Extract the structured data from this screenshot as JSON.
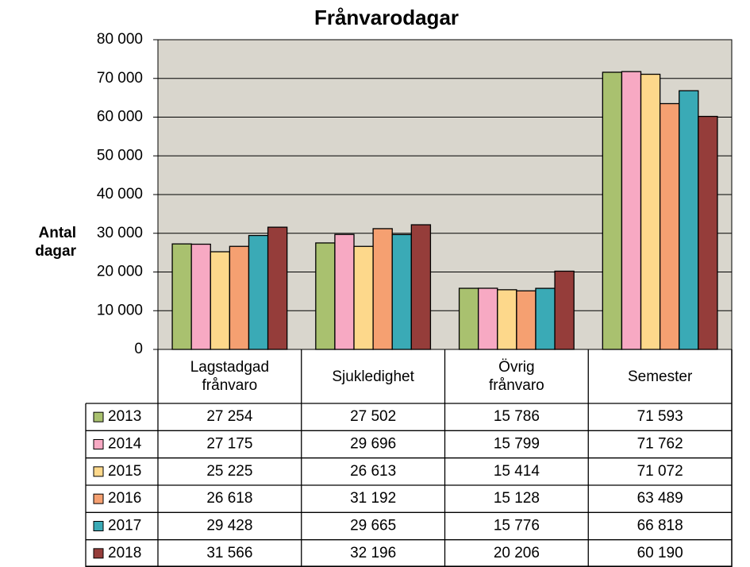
{
  "chart_data": {
    "type": "bar",
    "title": "Frånvarodagar",
    "y_label": "Antal dagar",
    "categories": [
      "Lagstadgad frånvaro",
      "Sjukledighet",
      "Övrig frånvaro",
      "Semester"
    ],
    "series": [
      {
        "name": "2013",
        "color": "#a9c16f",
        "values": [
          27254,
          27502,
          15786,
          71593
        ],
        "value_labels": [
          "27 254",
          "27 502",
          "15 786",
          "71 593"
        ]
      },
      {
        "name": "2014",
        "color": "#f7a9c3",
        "values": [
          27175,
          29696,
          15799,
          71762
        ],
        "value_labels": [
          "27 175",
          "29 696",
          "15 799",
          "71 762"
        ]
      },
      {
        "name": "2015",
        "color": "#fdd88b",
        "values": [
          25225,
          26613,
          15414,
          71072
        ],
        "value_labels": [
          "25 225",
          "26 613",
          "15 414",
          "71 072"
        ]
      },
      {
        "name": "2016",
        "color": "#f5a071",
        "values": [
          26618,
          31192,
          15128,
          63489
        ],
        "value_labels": [
          "26 618",
          "31 192",
          "15 128",
          "63 489"
        ]
      },
      {
        "name": "2017",
        "color": "#3aaab6",
        "values": [
          29428,
          29665,
          15776,
          66818
        ],
        "value_labels": [
          "29 428",
          "29 665",
          "15 776",
          "66 818"
        ]
      },
      {
        "name": "2018",
        "color": "#953d3a",
        "values": [
          31566,
          32196,
          20206,
          60190
        ],
        "value_labels": [
          "31 566",
          "32 196",
          "20 206",
          "60 190"
        ]
      }
    ],
    "ylim": [
      0,
      80000
    ],
    "yticks": [
      0,
      {
        "value": 10000,
        "label": "10 000"
      },
      {
        "value": 20000,
        "label": "20 000"
      },
      {
        "value": 30000,
        "label": "30 000"
      },
      {
        "value": 40000,
        "label": "40 000"
      },
      {
        "value": 50000,
        "label": "50 000"
      },
      {
        "value": 60000,
        "label": "60 000"
      },
      {
        "value": 70000,
        "label": "70 000"
      },
      {
        "value": 80000,
        "label": "80 000"
      }
    ],
    "grid": true,
    "plot_background": "#d9d6cd"
  }
}
